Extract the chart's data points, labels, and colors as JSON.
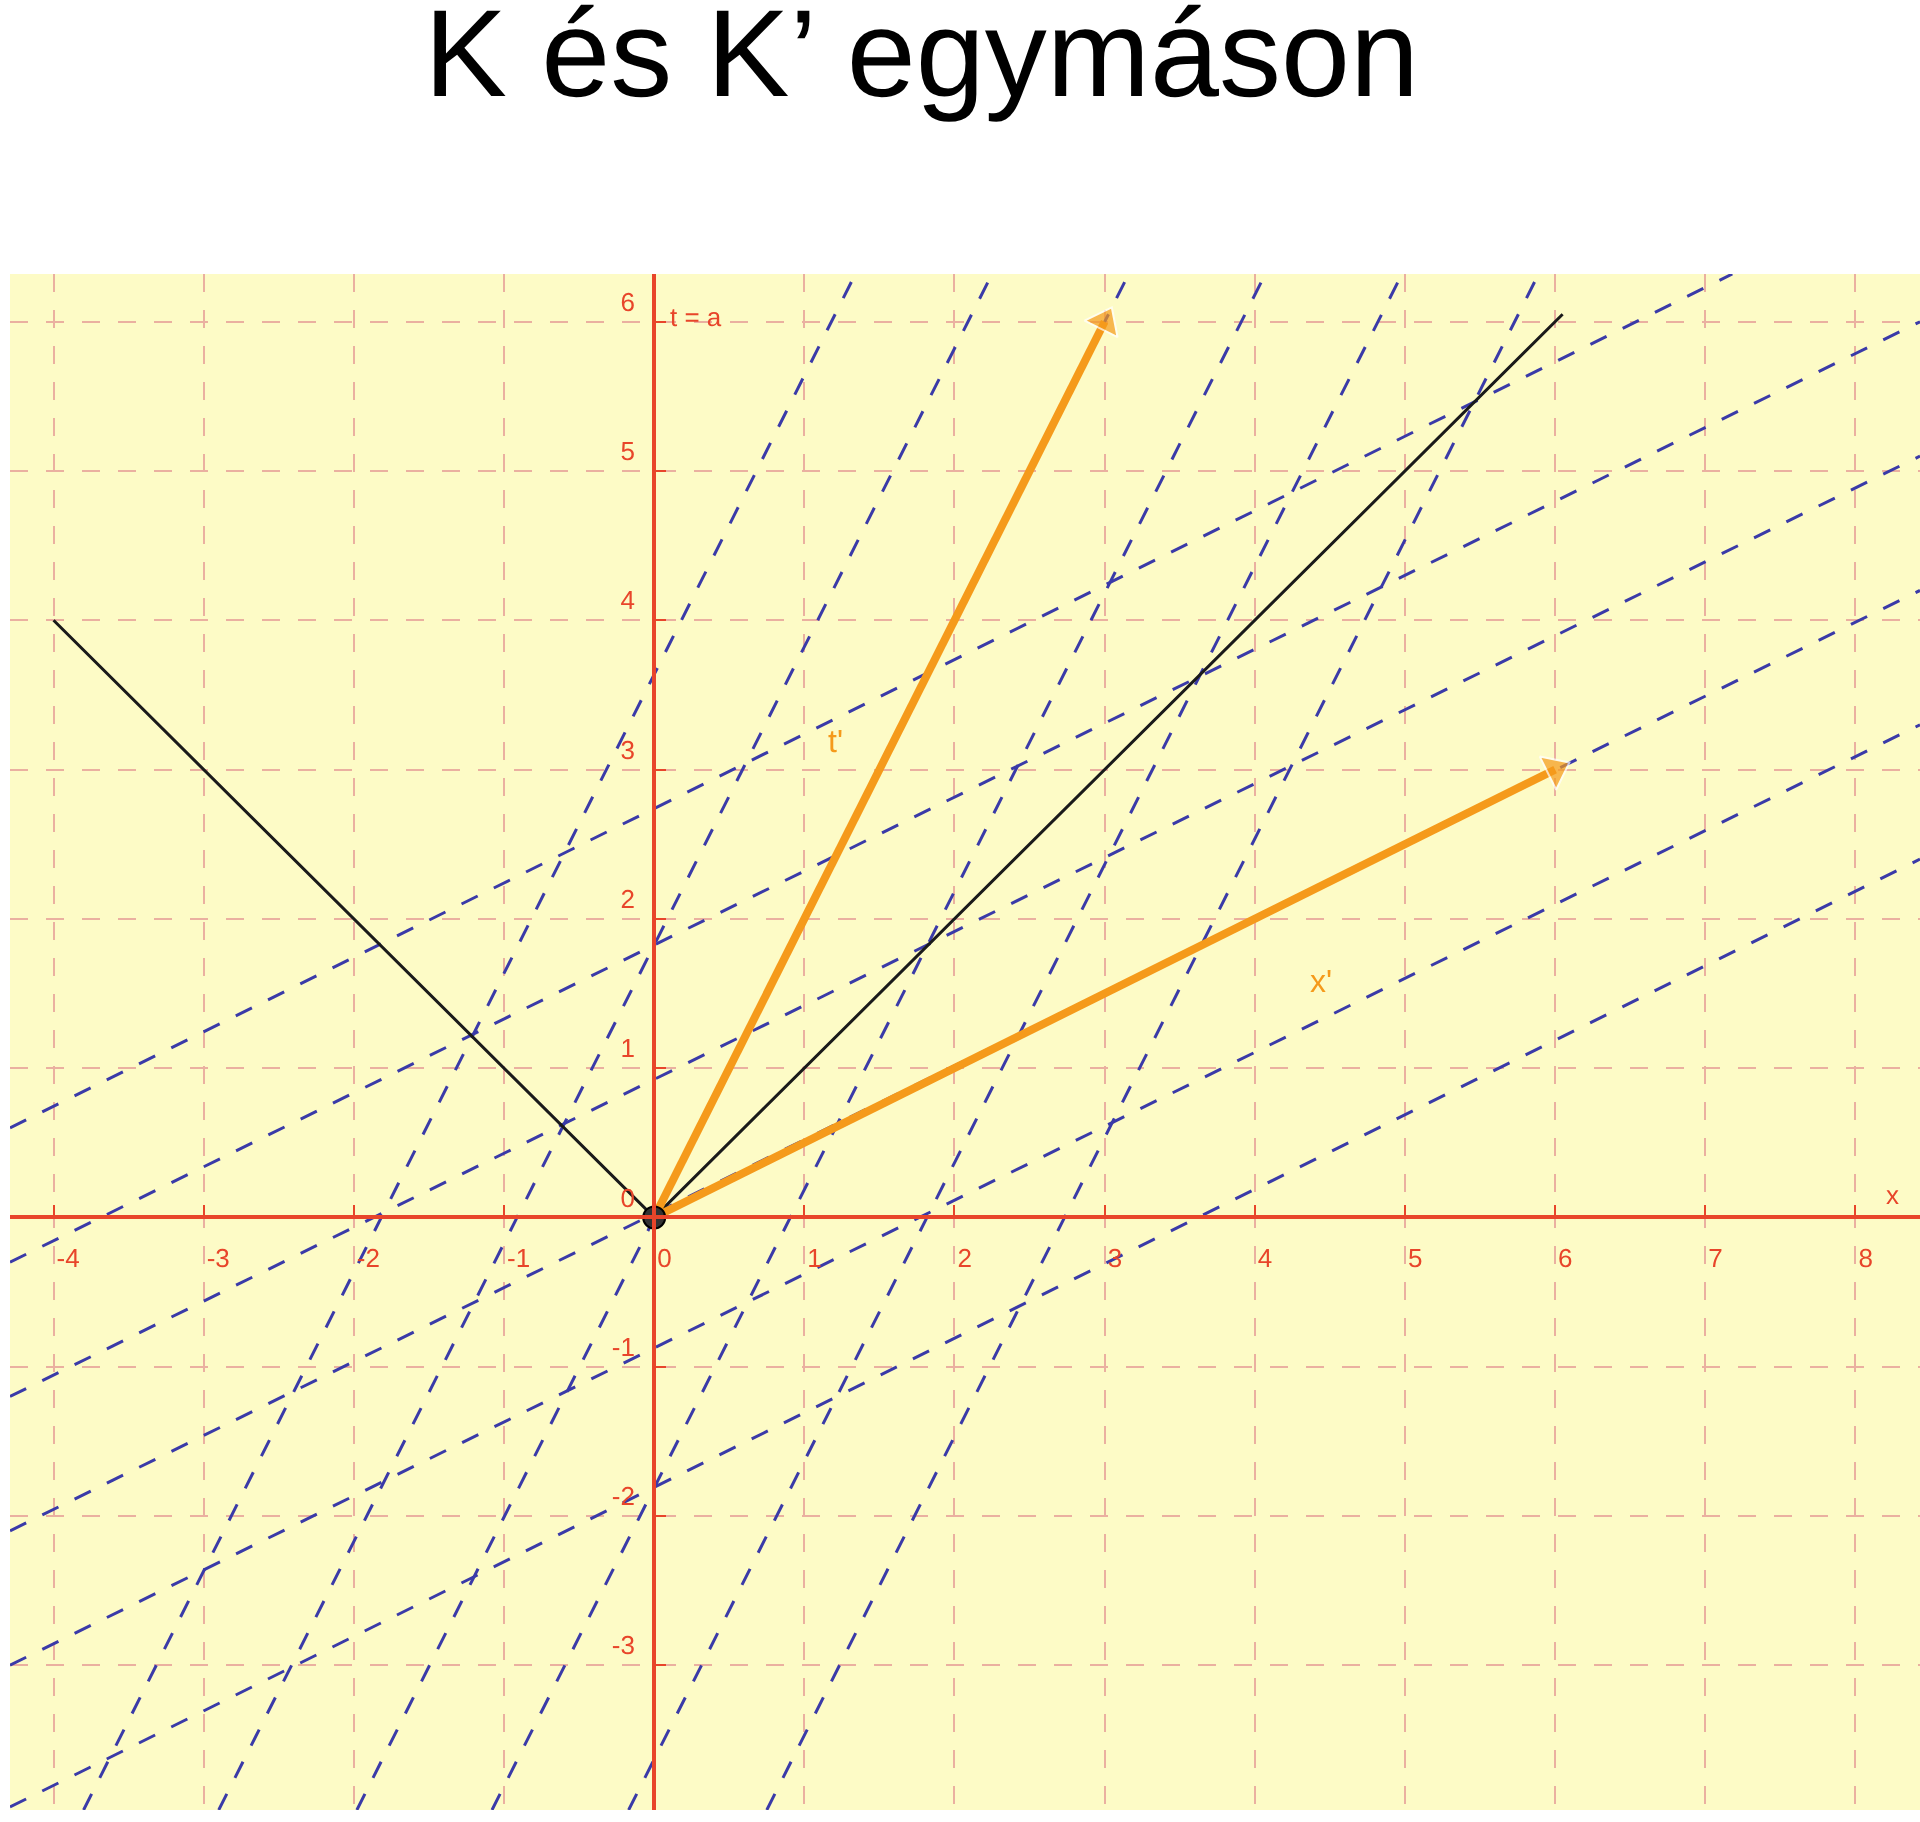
{
  "chart_data": {
    "type": "line",
    "title": "K és K’ egymáson",
    "xlabel": "x",
    "ylabel": "t = a",
    "xlim": [
      -4.29,
      8.43
    ],
    "ylim": [
      -3.97,
      6.32
    ],
    "xticks": [
      -4,
      -3,
      -2,
      -1,
      0,
      1,
      2,
      3,
      4,
      5,
      6,
      7,
      8
    ],
    "yticks": [
      -3,
      -2,
      -1,
      0,
      1,
      2,
      3,
      4,
      5,
      6
    ],
    "grid": true,
    "line_style": "solid",
    "series": [
      {
        "color": "#3a3aa8",
        "line_style": "dashed",
        "x": [
          -4.29,
          7.18
        ],
        "values": [
          0.6,
          6.32
        ]
      },
      {
        "color": "#3a3aa8",
        "line_style": "dashed",
        "x": [
          -4.29,
          8.43
        ],
        "values": [
          -0.3,
          6.0
        ]
      },
      {
        "color": "#3a3aa8",
        "line_style": "dashed",
        "x": [
          -4.29,
          8.43
        ],
        "values": [
          -1.2,
          5.1
        ]
      },
      {
        "color": "#3a3aa8",
        "line_style": "dashed",
        "x": [
          -4.29,
          8.43
        ],
        "values": [
          -2.1,
          4.2
        ]
      },
      {
        "color": "#3a3aa8",
        "line_style": "dashed",
        "x": [
          -4.29,
          8.43
        ],
        "values": [
          -3.0,
          3.3
        ]
      },
      {
        "color": "#3a3aa8",
        "line_style": "dashed",
        "x": [
          -4.29,
          8.43
        ],
        "values": [
          -3.95,
          2.4
        ]
      },
      {
        "color": "#3a3aa8",
        "line_style": "dashed",
        "x": [
          -3.8,
          1.34
        ],
        "values": [
          -3.97,
          6.32
        ]
      },
      {
        "color": "#3a3aa8",
        "line_style": "dashed",
        "x": [
          -2.9,
          2.25
        ],
        "values": [
          -3.97,
          6.32
        ]
      },
      {
        "color": "#3a3aa8",
        "line_style": "dashed",
        "x": [
          -1.98,
          3.16
        ],
        "values": [
          -3.97,
          6.32
        ]
      },
      {
        "color": "#3a3aa8",
        "line_style": "dashed",
        "x": [
          -1.08,
          4.07
        ],
        "values": [
          -3.97,
          6.32
        ]
      },
      {
        "color": "#3a3aa8",
        "line_style": "dashed",
        "x": [
          -0.17,
          4.98
        ],
        "values": [
          -3.97,
          6.32
        ]
      },
      {
        "color": "#3a3aa8",
        "line_style": "dashed",
        "x": [
          0.75,
          5.89
        ],
        "values": [
          -3.97,
          6.32
        ]
      },
      {
        "color": "#1a1a1a",
        "x": [
          -4,
          0,
          6.05
        ],
        "values": [
          4,
          0,
          6.05
        ]
      },
      {
        "name": "t'",
        "color": "#f59a1b",
        "marker": "triangle",
        "x": [
          0,
          3
        ],
        "values": [
          0,
          6
        ]
      },
      {
        "name": "x'",
        "color": "#f59a1b",
        "marker": "triangle",
        "x": [
          0,
          6
        ],
        "values": [
          0,
          3
        ]
      },
      {
        "type": "scatter",
        "color": "#333333",
        "marker": "circle",
        "x": [
          0
        ],
        "values": [
          0
        ]
      }
    ]
  }
}
